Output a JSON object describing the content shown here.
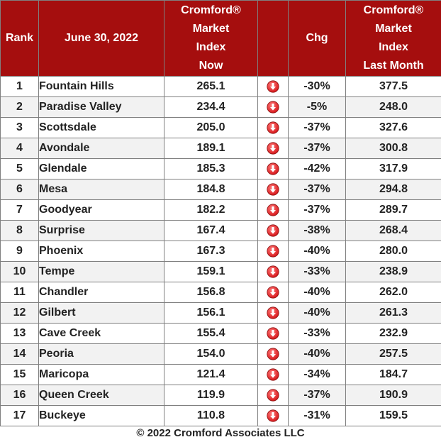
{
  "header": {
    "rank": "Rank",
    "date": "June 30, 2022",
    "now_lines": [
      "Cromford®",
      "Market",
      "Index",
      "Now"
    ],
    "chg": "Chg",
    "last_lines": [
      "Cromford®",
      "Market",
      "Index",
      "Last Month"
    ]
  },
  "colors": {
    "header_bg": "#a50e0e",
    "header_text": "#ffffff",
    "arrow_red": "#d8191c"
  },
  "trend_icon": "down-arrow-icon",
  "rows": [
    {
      "rank": "1",
      "city": "Fountain Hills",
      "now": "265.1",
      "chg": "-30%",
      "last": "377.5"
    },
    {
      "rank": "2",
      "city": "Paradise Valley",
      "now": "234.4",
      "chg": "-5%",
      "last": "248.0"
    },
    {
      "rank": "3",
      "city": "Scottsdale",
      "now": "205.0",
      "chg": "-37%",
      "last": "327.6"
    },
    {
      "rank": "4",
      "city": "Avondale",
      "now": "189.1",
      "chg": "-37%",
      "last": "300.8"
    },
    {
      "rank": "5",
      "city": "Glendale",
      "now": "185.3",
      "chg": "-42%",
      "last": "317.9"
    },
    {
      "rank": "6",
      "city": "Mesa",
      "now": "184.8",
      "chg": "-37%",
      "last": "294.8"
    },
    {
      "rank": "7",
      "city": "Goodyear",
      "now": "182.2",
      "chg": "-37%",
      "last": "289.7"
    },
    {
      "rank": "8",
      "city": "Surprise",
      "now": "167.4",
      "chg": "-38%",
      "last": "268.4"
    },
    {
      "rank": "9",
      "city": "Phoenix",
      "now": "167.3",
      "chg": "-40%",
      "last": "280.0"
    },
    {
      "rank": "10",
      "city": "Tempe",
      "now": "159.1",
      "chg": "-33%",
      "last": "238.9"
    },
    {
      "rank": "11",
      "city": "Chandler",
      "now": "156.8",
      "chg": "-40%",
      "last": "262.0"
    },
    {
      "rank": "12",
      "city": "Gilbert",
      "now": "156.1",
      "chg": "-40%",
      "last": "261.3"
    },
    {
      "rank": "13",
      "city": "Cave Creek",
      "now": "155.4",
      "chg": "-33%",
      "last": "232.9"
    },
    {
      "rank": "14",
      "city": "Peoria",
      "now": "154.0",
      "chg": "-40%",
      "last": "257.5"
    },
    {
      "rank": "15",
      "city": "Maricopa",
      "now": "121.4",
      "chg": "-34%",
      "last": "184.7"
    },
    {
      "rank": "16",
      "city": "Queen Creek",
      "now": "119.9",
      "chg": "-37%",
      "last": "190.9"
    },
    {
      "rank": "17",
      "city": "Buckeye",
      "now": "110.8",
      "chg": "-31%",
      "last": "159.5"
    }
  ],
  "footer": "© 2022 Cromford Associates LLC"
}
